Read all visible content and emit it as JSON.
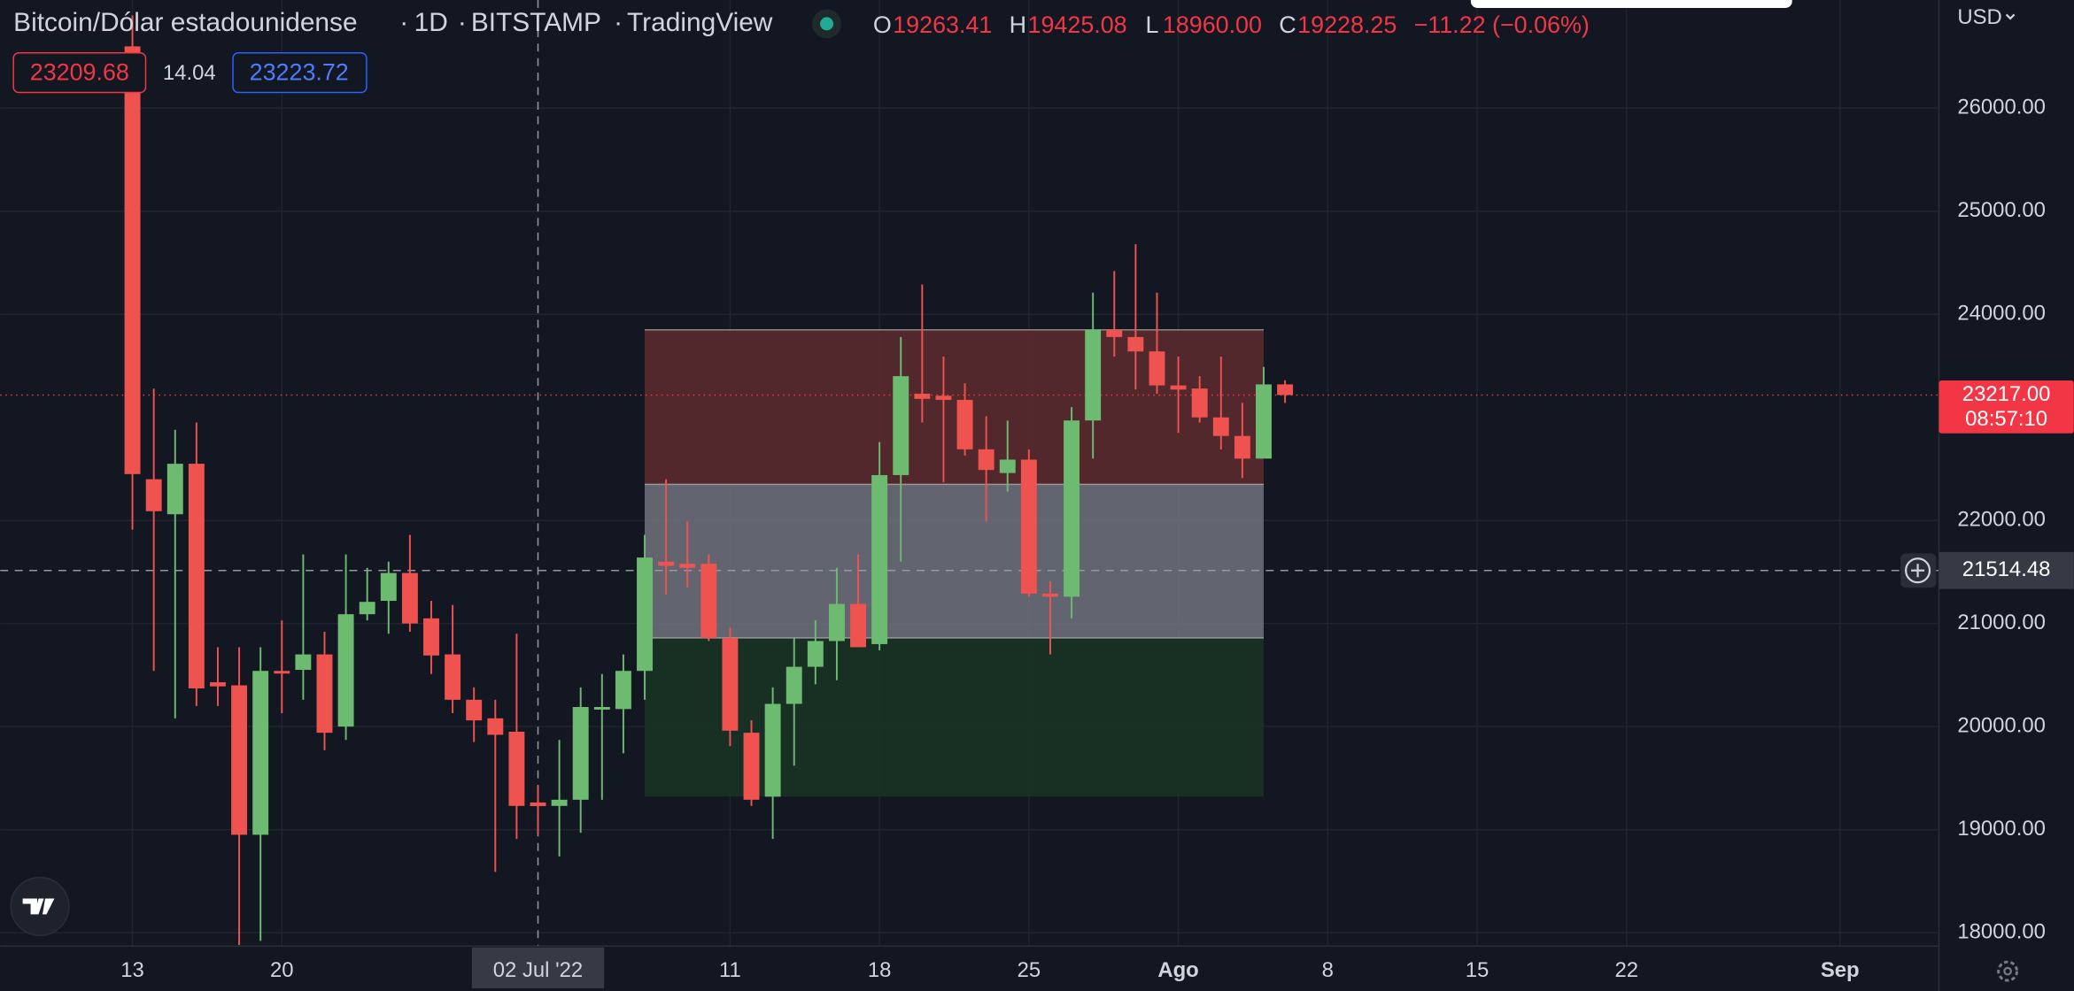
{
  "chart_data": {
    "type": "candlestick",
    "symbol": "Bitcoin/Dólar estadounidense",
    "separator": "·",
    "interval": "1D",
    "exchange": "BITSTAMP",
    "source": "TradingView",
    "ohlc_legend": {
      "labels": [
        "O",
        "H",
        "L",
        "C"
      ],
      "value_labels": [
        "19263.41",
        "19425.08",
        "18960.00",
        "19228.25"
      ],
      "change": "−11.22 (−0.06%)"
    },
    "quote_badges": [
      "23209.68",
      "14.04",
      "23223.72"
    ],
    "currency": "USD",
    "up_color": "#6dbb70",
    "down_color": "#ef5350",
    "categories": [
      "13",
      null,
      null,
      null,
      null,
      null,
      null,
      "20",
      null,
      null,
      null,
      null,
      null,
      null,
      null,
      null,
      null,
      null,
      null,
      "02 Jul '22",
      null,
      null,
      null,
      null,
      null,
      null,
      null,
      null,
      "11",
      null,
      null,
      null,
      null,
      null,
      null,
      "18",
      null,
      null,
      null,
      null,
      null,
      null,
      "25",
      null,
      null,
      null,
      null,
      null,
      null,
      "Ago",
      null,
      null,
      null,
      null,
      null,
      null,
      "8",
      null,
      null,
      null,
      null,
      null,
      null,
      "15",
      null,
      null,
      null,
      null,
      null,
      null,
      "22",
      null,
      null,
      null,
      null,
      null,
      null,
      null,
      null,
      null,
      "Sep",
      null,
      null,
      null,
      null
    ],
    "open": [
      26600,
      22400,
      22060,
      22550,
      20430,
      20400,
      18950,
      20540,
      20550,
      20700,
      20000,
      21090,
      21220,
      21490,
      21050,
      20700,
      20260,
      20080,
      19950,
      19263.41,
      19230,
      19290,
      20170,
      20170,
      20540,
      21600,
      21580,
      21580,
      20860,
      19940,
      19320,
      20220,
      20580,
      20830,
      21190,
      20800,
      22440,
      23230,
      23210,
      23170,
      22690,
      22460,
      22590,
      21290,
      21260,
      22970,
      23850,
      23780,
      23640,
      23310,
      23280,
      23000,
      22820,
      22600,
      23320,
      null,
      null,
      null,
      null,
      null,
      null,
      null,
      null,
      null,
      null,
      null,
      null,
      null,
      null,
      null,
      null,
      null,
      null,
      null,
      null,
      null,
      null,
      null,
      null,
      null,
      null,
      null,
      null,
      null,
      null
    ],
    "high": [
      26900,
      23280,
      22880,
      22950,
      20770,
      20770,
      20770,
      21030,
      21670,
      20920,
      21670,
      21540,
      21600,
      21860,
      21220,
      21180,
      20380,
      20260,
      20900,
      19425.08,
      19870,
      20380,
      20510,
      20700,
      21860,
      22400,
      21990,
      21670,
      20960,
      20060,
      20380,
      20860,
      21030,
      21540,
      21670,
      22760,
      23780,
      24290,
      23590,
      23330,
      23010,
      22970,
      22690,
      21410,
      23100,
      24210,
      24420,
      24680,
      24210,
      23590,
      23400,
      23590,
      23140,
      23490,
      23360,
      null,
      null,
      null,
      null,
      null,
      null,
      null,
      null,
      null,
      null,
      null,
      null,
      null,
      null,
      null,
      null,
      null,
      null,
      null,
      null,
      null,
      null,
      null,
      null,
      null,
      null,
      null,
      null,
      null,
      null
    ],
    "low": [
      21910,
      20540,
      20080,
      20200,
      20200,
      17880,
      17920,
      20130,
      20260,
      19770,
      19870,
      21030,
      20900,
      20920,
      20510,
      20130,
      19850,
      18590,
      18910,
      18960,
      18740,
      18970,
      19290,
      19740,
      20260,
      21280,
      21350,
      20830,
      19810,
      19230,
      18910,
      19620,
      20410,
      20450,
      20770,
      20740,
      21600,
      22950,
      22370,
      22630,
      21990,
      22280,
      21260,
      20700,
      21050,
      22600,
      23590,
      23270,
      23230,
      22850,
      22950,
      22690,
      22410,
      22630,
      23140,
      null,
      null,
      null,
      null,
      null,
      null,
      null,
      null,
      null,
      null,
      null,
      null,
      null,
      null,
      null,
      null,
      null,
      null,
      null,
      null,
      null,
      null,
      null,
      null,
      null,
      null,
      null,
      null,
      null,
      null
    ],
    "close": [
      22450,
      22090,
      22550,
      20370,
      20390,
      18950,
      20540,
      20520,
      20700,
      19940,
      21090,
      21210,
      21490,
      21000,
      20690,
      20260,
      20060,
      19920,
      19230,
      19228.25,
      19290,
      20190,
      20190,
      20540,
      21640,
      21560,
      21540,
      20860,
      19960,
      19290,
      20220,
      20580,
      20830,
      21190,
      20770,
      22440,
      23400,
      23180,
      23170,
      22690,
      22490,
      22590,
      21290,
      21260,
      22970,
      23850,
      23780,
      23640,
      23310,
      23270,
      23000,
      22820,
      22600,
      23320,
      23217,
      null,
      null,
      null,
      null,
      null,
      null,
      null,
      null,
      null,
      null,
      null,
      null,
      null,
      null,
      null,
      null,
      null,
      null,
      null,
      null,
      null,
      null,
      null,
      null,
      null,
      null,
      null,
      null,
      null,
      null
    ],
    "ylim": [
      17870,
      27050
    ],
    "yticks": [
      {
        "value": 18000,
        "label": "18000.00"
      },
      {
        "value": 19000,
        "label": "19000.00"
      },
      {
        "value": 20000,
        "label": "20000.00"
      },
      {
        "value": 21000,
        "label": "21000.00"
      },
      {
        "value": 22000,
        "label": "22000.00"
      },
      {
        "value": 24000,
        "label": "24000.00"
      },
      {
        "value": 25000,
        "label": "25000.00"
      },
      {
        "value": 26000,
        "label": "26000.00"
      }
    ],
    "grid": true,
    "zones": [
      {
        "from": 22350,
        "to": 23850,
        "color": "#5a2a2e"
      },
      {
        "from": 20860,
        "to": 22350,
        "color": "#6b6e78"
      },
      {
        "from": 19320,
        "to": 20860,
        "color": "#1a3224"
      }
    ],
    "last_price": {
      "value": 23217,
      "label": "23217.00",
      "countdown": "08:57:10",
      "color": "#f23645"
    },
    "crosshair": {
      "value": 21514.48,
      "label": "21514.48"
    }
  }
}
